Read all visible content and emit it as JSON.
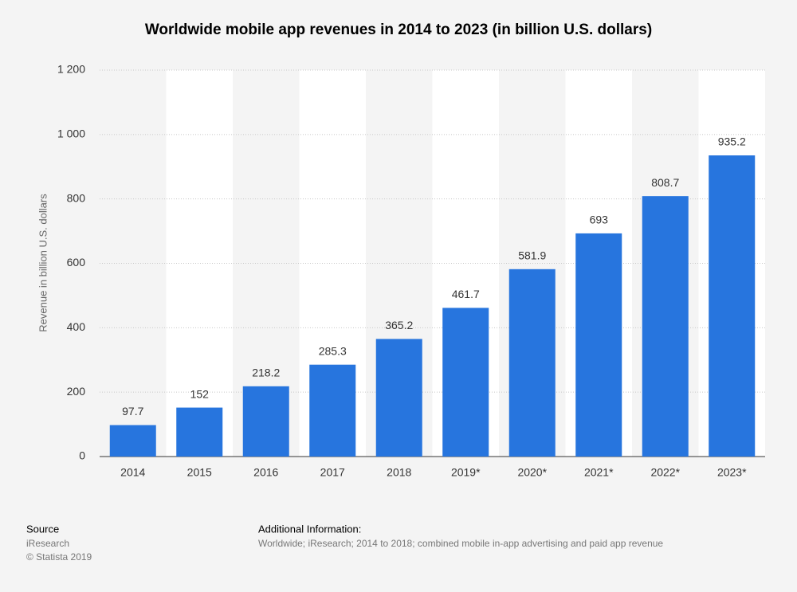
{
  "chart_data": {
    "type": "bar",
    "title": "Worldwide mobile app revenues in 2014 to 2023 (in billion U.S. dollars)",
    "y_label": "Revenue in billion U.S. dollars",
    "categories": [
      "2014",
      "2015",
      "2016",
      "2017",
      "2018",
      "2019*",
      "2020*",
      "2021*",
      "2022*",
      "2023*"
    ],
    "values": [
      97.7,
      152,
      218.2,
      285.3,
      365.2,
      461.7,
      581.9,
      693,
      808.7,
      935.2
    ],
    "color": "#2775de",
    "ylim": [
      0,
      1200
    ],
    "yticks": [
      0,
      200,
      400,
      600,
      800,
      {
        "value": 1000,
        "label": "1 000"
      },
      {
        "value": 1200,
        "label": "1 200"
      }
    ],
    "grid": true
  },
  "footer": {
    "source_heading": "Source",
    "source": "iResearch",
    "copyright": "© Statista 2019",
    "info_heading": "Additional Information:",
    "info": "Worldwide; iResearch; 2014 to 2018; combined mobile in-app advertising and paid app revenue"
  }
}
